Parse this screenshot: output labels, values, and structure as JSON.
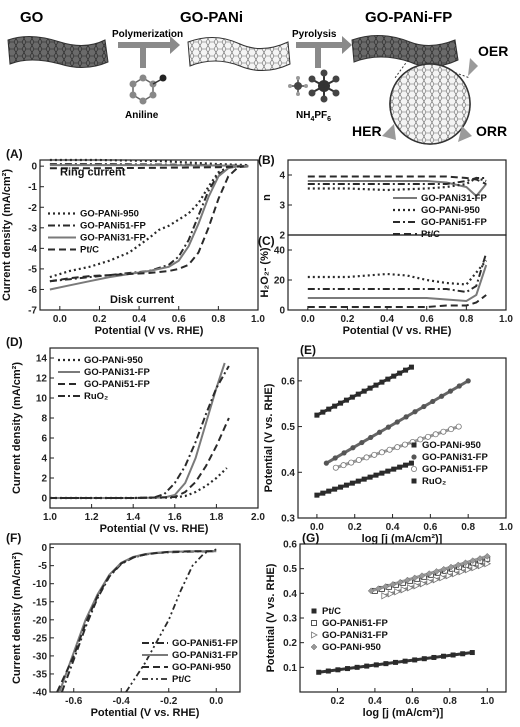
{
  "scheme": {
    "step1": "GO",
    "step2": "GO-PANi",
    "step3": "GO-PANi-FP",
    "arrow1": "Polymerization",
    "arrow2": "Pyrolysis",
    "reagent1": "Aniline",
    "reagent2_main": "NH",
    "reagent2_sub1": "4",
    "reagent2_mid": "PF",
    "reagent2_sub2": "6",
    "oer": "OER",
    "her": "HER",
    "orr": "ORR"
  },
  "colors": {
    "dark": "#2a2a2a",
    "gray": "#7a7a7a",
    "light": "#a8a8a8",
    "sheet": "#555555"
  },
  "chart_data": [
    {
      "id": "A",
      "panel_label": "(A)",
      "type": "line",
      "xlabel": "Potential (V vs. RHE)",
      "ylabel": "Current density (mA/cm²)",
      "xlim": [
        -0.1,
        1.0
      ],
      "ylim": [
        -7,
        0.3
      ],
      "xticks": [
        "0.0",
        "0.2",
        "0.4",
        "0.6",
        "0.8",
        "1.0"
      ],
      "yticks": [
        "0",
        "-1",
        "-2",
        "-3",
        "-4",
        "-5",
        "-6",
        "-7"
      ],
      "annotations": [
        "Ring current",
        "Disk current"
      ],
      "series": [
        {
          "name": "GO-PANi-950",
          "style": "dot",
          "x": [
            -0.05,
            0.05,
            0.15,
            0.25,
            0.35,
            0.45,
            0.5,
            0.55,
            0.6,
            0.65,
            0.7,
            0.75,
            0.8,
            0.85,
            0.9,
            0.95
          ],
          "y": [
            -5.4,
            -5.1,
            -4.9,
            -4.6,
            -4.2,
            -3.5,
            -3.1,
            -2.9,
            -2.6,
            -2.3,
            -1.8,
            -1.0,
            -0.3,
            -0.05,
            0,
            0
          ]
        },
        {
          "name": "GO-PANi51-FP",
          "style": "dashdot",
          "x": [
            -0.05,
            0.05,
            0.15,
            0.25,
            0.35,
            0.45,
            0.55,
            0.6,
            0.65,
            0.7,
            0.75,
            0.8,
            0.85,
            0.9,
            0.95
          ],
          "y": [
            -5.6,
            -5.5,
            -5.4,
            -5.3,
            -5.2,
            -5.1,
            -4.8,
            -4.4,
            -3.6,
            -2.4,
            -1.2,
            -0.4,
            -0.08,
            0,
            0
          ]
        },
        {
          "name": "GO-PANi31-FP",
          "style": "solid",
          "x": [
            -0.05,
            0.05,
            0.15,
            0.25,
            0.35,
            0.45,
            0.55,
            0.6,
            0.65,
            0.7,
            0.75,
            0.8,
            0.85,
            0.9,
            0.95
          ],
          "y": [
            -6.0,
            -5.8,
            -5.6,
            -5.4,
            -5.25,
            -5.1,
            -4.9,
            -4.6,
            -3.9,
            -2.8,
            -1.5,
            -0.5,
            -0.1,
            0,
            0
          ]
        },
        {
          "name": "Pt/C",
          "style": "dash",
          "x": [
            -0.05,
            0.05,
            0.15,
            0.25,
            0.35,
            0.45,
            0.55,
            0.6,
            0.65,
            0.7,
            0.75,
            0.8,
            0.85,
            0.9,
            0.95
          ],
          "y": [
            -5.6,
            -5.45,
            -5.35,
            -5.3,
            -5.25,
            -5.2,
            -5.1,
            -5.0,
            -4.8,
            -4.2,
            -3.0,
            -1.6,
            -0.5,
            -0.05,
            0
          ]
        },
        {
          "name": "",
          "style": "dot",
          "x": [
            -0.05,
            0.2,
            0.5,
            0.8,
            0.95
          ],
          "y": [
            0.3,
            0.3,
            0.25,
            0.1,
            0.05
          ]
        },
        {
          "name": "",
          "style": "dashdot",
          "x": [
            -0.05,
            0.2,
            0.5,
            0.8,
            0.95
          ],
          "y": [
            0.1,
            0.1,
            0.08,
            0.05,
            0.02
          ]
        },
        {
          "name": "",
          "style": "solid",
          "x": [
            -0.05,
            0.2,
            0.5,
            0.8,
            0.95
          ],
          "y": [
            0.05,
            0.05,
            0.05,
            0.03,
            0.01
          ]
        },
        {
          "name": "",
          "style": "dash",
          "x": [
            -0.05,
            0.2,
            0.5,
            0.8,
            0.95
          ],
          "y": [
            -0.1,
            -0.1,
            -0.08,
            -0.05,
            0
          ]
        }
      ]
    },
    {
      "id": "B",
      "panel_label": "(B)",
      "type": "line",
      "xlabel": "",
      "ylabel": "n",
      "xlim": [
        -0.1,
        1.0
      ],
      "ylim": [
        2,
        4.5
      ],
      "yticks": [
        "2",
        "3",
        "4"
      ],
      "series": [
        {
          "name": "GO-PANi31-FP",
          "style": "solid",
          "x": [
            0.0,
            0.2,
            0.4,
            0.6,
            0.7,
            0.8,
            0.85,
            0.9
          ],
          "y": [
            3.8,
            3.8,
            3.8,
            3.8,
            3.75,
            3.6,
            3.3,
            3.7
          ]
        },
        {
          "name": "GO-PANi-950",
          "style": "dot",
          "x": [
            0.0,
            0.2,
            0.4,
            0.6,
            0.7,
            0.8,
            0.85,
            0.9
          ],
          "y": [
            3.55,
            3.55,
            3.5,
            3.55,
            3.6,
            3.7,
            3.9,
            3.8
          ]
        },
        {
          "name": "GO-PANi51-FP",
          "style": "dashdot",
          "x": [
            0.0,
            0.2,
            0.4,
            0.6,
            0.7,
            0.8,
            0.85,
            0.9
          ],
          "y": [
            3.7,
            3.7,
            3.7,
            3.7,
            3.7,
            3.8,
            3.9,
            3.9
          ]
        },
        {
          "name": "Pt/C",
          "style": "dash",
          "x": [
            0.0,
            0.2,
            0.4,
            0.6,
            0.7,
            0.8,
            0.85,
            0.9
          ],
          "y": [
            3.95,
            3.95,
            3.95,
            3.95,
            3.95,
            3.9,
            3.85,
            3.7
          ]
        }
      ]
    },
    {
      "id": "C",
      "panel_label": "(C)",
      "type": "line",
      "xlabel": "Potential (V vs. RHE)",
      "ylabel": "H₂O₂- (%)",
      "xlim": [
        -0.1,
        1.0
      ],
      "ylim": [
        0,
        50
      ],
      "xticks": [
        "0.0",
        "0.2",
        "0.4",
        "0.6",
        "0.8",
        "1.0"
      ],
      "yticks": [
        "0",
        "20",
        "40"
      ],
      "series": [
        {
          "name": "",
          "style": "dot",
          "x": [
            0.0,
            0.2,
            0.4,
            0.5,
            0.6,
            0.7,
            0.8,
            0.85,
            0.9
          ],
          "y": [
            22,
            22,
            24,
            23,
            20,
            18,
            17,
            25,
            33
          ]
        },
        {
          "name": "",
          "style": "dashdot",
          "x": [
            0.0,
            0.2,
            0.4,
            0.6,
            0.7,
            0.8,
            0.85,
            0.9
          ],
          "y": [
            14,
            14,
            14,
            14,
            14,
            12,
            16,
            38
          ]
        },
        {
          "name": "",
          "style": "solid",
          "x": [
            0.0,
            0.2,
            0.4,
            0.6,
            0.7,
            0.8,
            0.85,
            0.9
          ],
          "y": [
            8,
            8,
            8,
            8,
            7,
            6,
            10,
            30
          ]
        },
        {
          "name": "",
          "style": "dash",
          "x": [
            0.0,
            0.2,
            0.4,
            0.6,
            0.7,
            0.8,
            0.85,
            0.9
          ],
          "y": [
            2,
            2,
            2,
            2,
            3,
            3,
            5,
            10
          ]
        }
      ]
    },
    {
      "id": "D",
      "panel_label": "(D)",
      "type": "line",
      "xlabel": "Potential (V vs. RHE)",
      "ylabel": "Current density (mA/cm²)",
      "xlim": [
        1.0,
        2.0
      ],
      "ylim": [
        -1,
        15
      ],
      "xticks": [
        "1.0",
        "1.2",
        "1.4",
        "1.6",
        "1.8",
        "2.0"
      ],
      "yticks": [
        "0",
        "2",
        "4",
        "6",
        "8",
        "10",
        "12",
        "14"
      ],
      "series": [
        {
          "name": "GO-PANi-950",
          "style": "dot",
          "x": [
            1.0,
            1.4,
            1.6,
            1.65,
            1.7,
            1.75,
            1.8,
            1.85
          ],
          "y": [
            0,
            0,
            0.05,
            0.2,
            0.6,
            1.2,
            2.0,
            3.0
          ]
        },
        {
          "name": "GO-PANi31-FP",
          "style": "solid",
          "x": [
            1.0,
            1.4,
            1.55,
            1.6,
            1.65,
            1.7,
            1.75,
            1.8,
            1.84
          ],
          "y": [
            0,
            0,
            0.05,
            0.3,
            1.5,
            4.0,
            7.5,
            11.0,
            13.5
          ]
        },
        {
          "name": "GO-PANi51-FP",
          "style": "dash",
          "x": [
            1.0,
            1.4,
            1.6,
            1.65,
            1.7,
            1.75,
            1.8,
            1.86
          ],
          "y": [
            0,
            0,
            0.1,
            0.6,
            1.6,
            3.2,
            5.2,
            8.0
          ]
        },
        {
          "name": "RuO₂",
          "style": "dashdot",
          "x": [
            1.0,
            1.4,
            1.5,
            1.55,
            1.6,
            1.65,
            1.7,
            1.75,
            1.8,
            1.86
          ],
          "y": [
            0,
            0,
            0.05,
            0.4,
            1.5,
            3.2,
            5.6,
            8.4,
            11.0,
            13.2
          ]
        }
      ]
    },
    {
      "id": "E",
      "panel_label": "(E)",
      "type": "scatter",
      "xlabel": "log [j (mA/cm²)]",
      "ylabel": "Potential (V vs. RHE)",
      "xlim": [
        -0.1,
        1.0
      ],
      "ylim": [
        0.3,
        0.65
      ],
      "xticks": [
        "0.0",
        "0.2",
        "0.4",
        "0.6",
        "0.8",
        "1.0"
      ],
      "yticks": [
        "0.3",
        "0.4",
        "0.5",
        "0.6"
      ],
      "series": [
        {
          "name": "GO-PANi-950",
          "marker": "square",
          "x": [
            0.0,
            0.5
          ],
          "y": [
            0.525,
            0.63
          ]
        },
        {
          "name": "GO-PANi31-FP",
          "marker": "circle",
          "x": [
            0.05,
            0.8
          ],
          "y": [
            0.42,
            0.6
          ]
        },
        {
          "name": "GO-PANi51-FP",
          "marker": "circle-open",
          "x": [
            0.1,
            0.75
          ],
          "y": [
            0.41,
            0.5
          ]
        },
        {
          "name": "RuO₂",
          "marker": "square",
          "x": [
            0.0,
            0.5
          ],
          "y": [
            0.35,
            0.42
          ]
        }
      ]
    },
    {
      "id": "F",
      "panel_label": "(F)",
      "type": "line",
      "xlabel": "Potential (V vs. RHE)",
      "ylabel": "Current density (mA/cm²)",
      "xlim": [
        -0.7,
        0.1
      ],
      "ylim": [
        -40,
        1
      ],
      "xticks": [
        "-0.6",
        "-0.4",
        "-0.2",
        "0.0"
      ],
      "yticks": [
        "0",
        "-5",
        "-10",
        "-15",
        "-20",
        "-25",
        "-30",
        "-35",
        "-40"
      ],
      "series": [
        {
          "name": "GO-PANi51-FP",
          "style": "dashdot",
          "x": [
            -0.65,
            -0.6,
            -0.55,
            -0.5,
            -0.45,
            -0.4,
            -0.35,
            -0.3,
            -0.25,
            -0.2,
            -0.1,
            0.0
          ],
          "y": [
            -40,
            -31,
            -22,
            -14,
            -8,
            -4.5,
            -2.8,
            -1.9,
            -1.5,
            -1.3,
            -1.1,
            -1.0
          ]
        },
        {
          "name": "GO-PANi31-FP",
          "style": "solid",
          "x": [
            -0.66,
            -0.6,
            -0.55,
            -0.5,
            -0.45,
            -0.4,
            -0.35,
            -0.3,
            -0.25,
            -0.2,
            -0.1,
            0.0
          ],
          "y": [
            -40,
            -29,
            -20,
            -13,
            -7.5,
            -4.2,
            -2.6,
            -1.8,
            -1.4,
            -1.2,
            -1.0,
            -1.0
          ]
        },
        {
          "name": "GO-PANi-950",
          "style": "dash",
          "x": [
            -0.67,
            -0.6,
            -0.55,
            -0.5,
            -0.45,
            -0.4,
            -0.35,
            -0.3,
            -0.25,
            -0.2,
            -0.1,
            0.0
          ],
          "y": [
            -40,
            -30,
            -21,
            -13.5,
            -7.8,
            -4.4,
            -2.7,
            -1.9,
            -1.5,
            -1.2,
            -1.0,
            -1.0
          ]
        },
        {
          "name": "Pt/C",
          "style": "dashdot2",
          "x": [
            -0.38,
            -0.3,
            -0.2,
            -0.15,
            -0.1,
            -0.05,
            0.0
          ],
          "y": [
            -40,
            -32,
            -20,
            -12,
            -5,
            -1.5,
            -0.5
          ]
        }
      ]
    },
    {
      "id": "G",
      "panel_label": "(G)",
      "type": "scatter",
      "xlabel": "log [j (mA/cm²)]",
      "ylabel": "Potential (V vs. RHE)",
      "xlim": [
        0.0,
        1.1
      ],
      "ylim": [
        0.0,
        0.6
      ],
      "xticks": [
        "0.2",
        "0.4",
        "0.6",
        "0.8",
        "1.0"
      ],
      "yticks": [
        "0.1",
        "0.2",
        "0.3",
        "0.4",
        "0.5",
        "0.6"
      ],
      "series": [
        {
          "name": "Pt/C",
          "marker": "square",
          "x": [
            0.1,
            0.92
          ],
          "y": [
            0.08,
            0.16
          ]
        },
        {
          "name": "GO-PANi51-FP",
          "marker": "square-open",
          "x": [
            0.4,
            1.0
          ],
          "y": [
            0.41,
            0.54
          ]
        },
        {
          "name": "GO-PANi31-FP",
          "marker": "triangle-open",
          "x": [
            0.45,
            1.0
          ],
          "y": [
            0.39,
            0.52
          ]
        },
        {
          "name": "GO-PANi-950",
          "marker": "diamond",
          "x": [
            0.38,
            1.0
          ],
          "y": [
            0.41,
            0.55
          ]
        }
      ]
    }
  ]
}
